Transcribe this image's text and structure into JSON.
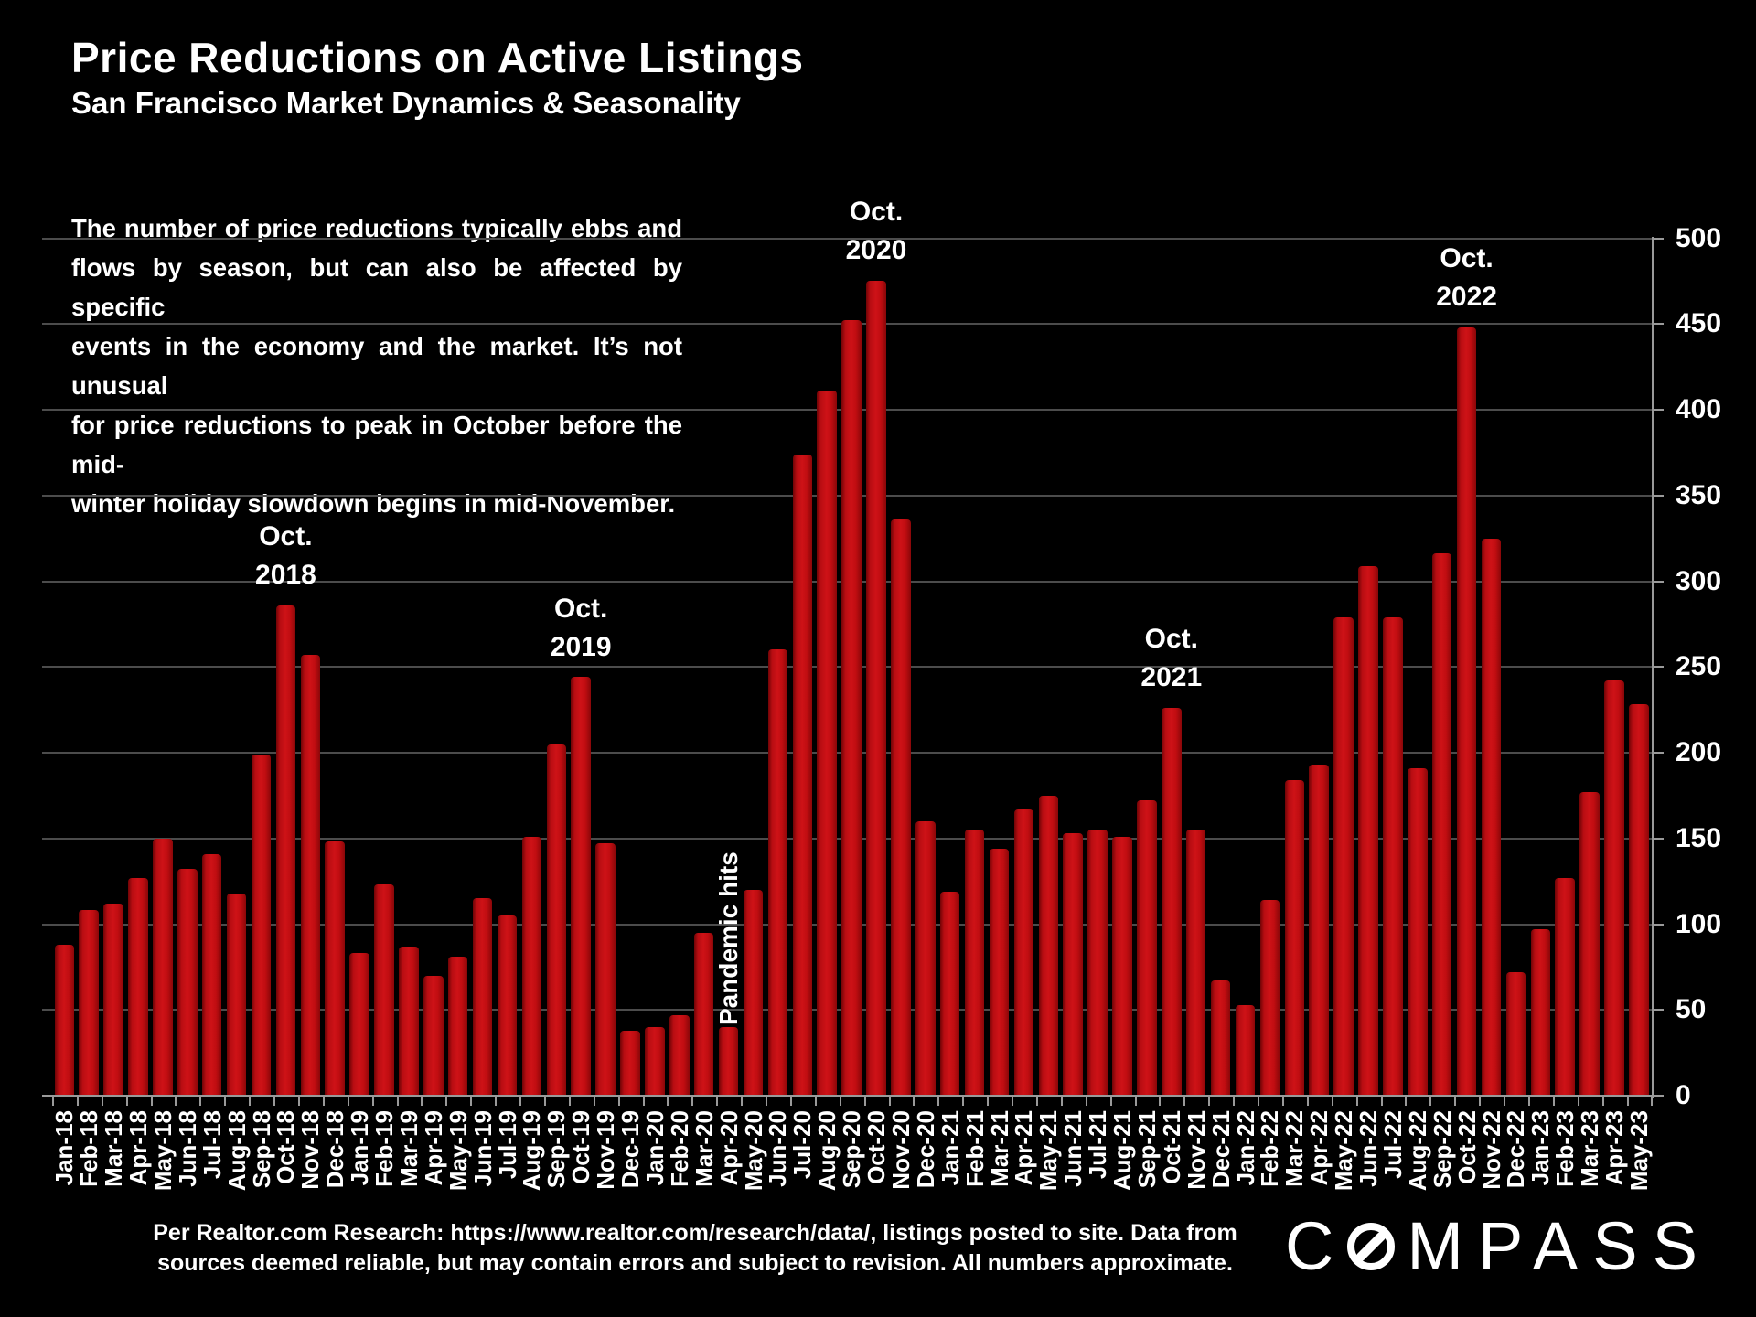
{
  "title": "Price Reductions on Active Listings",
  "subtitle": "San Francisco Market Dynamics & Seasonality",
  "paragraph_lines": [
    "The number of price reductions typically ebbs and",
    "flows by season, but can also be affected by specific",
    "events in the economy and the market. It’s not unusual",
    "for price reductions to peak in October before the mid-",
    "winter holiday slowdown begins in mid-November."
  ],
  "chart_data": {
    "type": "bar",
    "categories": [
      "Jan-18",
      "Feb-18",
      "Mar-18",
      "Apr-18",
      "May-18",
      "Jun-18",
      "Jul-18",
      "Aug-18",
      "Sep-18",
      "Oct-18",
      "Nov-18",
      "Dec-18",
      "Jan-19",
      "Feb-19",
      "Mar-19",
      "Apr-19",
      "May-19",
      "Jun-19",
      "Jul-19",
      "Aug-19",
      "Sep-19",
      "Oct-19",
      "Nov-19",
      "Dec-19",
      "Jan-20",
      "Feb-20",
      "Mar-20",
      "Apr-20",
      "May-20",
      "Jun-20",
      "Jul-20",
      "Aug-20",
      "Sep-20",
      "Oct-20",
      "Nov-20",
      "Dec-20",
      "Jan-21",
      "Feb-21",
      "Mar-21",
      "Apr-21",
      "May-21",
      "Jun-21",
      "Jul-21",
      "Aug-21",
      "Sep-21",
      "Oct-21",
      "Nov-21",
      "Dec-21",
      "Jan-22",
      "Feb-22",
      "Mar-22",
      "Apr-22",
      "May-22",
      "Jun-22",
      "Jul-22",
      "Aug-22",
      "Sep-22",
      "Oct-22",
      "Nov-22",
      "Dec-22",
      "Jan-23",
      "Feb-23",
      "Mar-23",
      "Apr-23",
      "May-23"
    ],
    "values": [
      88,
      108,
      112,
      127,
      150,
      132,
      141,
      118,
      199,
      286,
      257,
      148,
      83,
      123,
      87,
      70,
      81,
      115,
      105,
      151,
      205,
      244,
      147,
      38,
      40,
      47,
      95,
      40,
      120,
      260,
      374,
      411,
      452,
      475,
      336,
      160,
      119,
      155,
      144,
      167,
      175,
      153,
      155,
      151,
      172,
      226,
      155,
      67,
      53,
      114,
      184,
      193,
      279,
      309,
      279,
      191,
      316,
      448,
      325,
      72,
      97,
      127,
      177,
      242,
      228
    ],
    "ylim": [
      0,
      500
    ],
    "ytick_interval": 50,
    "ytick_labels": [
      "0",
      "50",
      "100",
      "150",
      "200",
      "250",
      "300",
      "350",
      "400",
      "450",
      "500"
    ],
    "y_axis_side": "right",
    "grid": "horizontal",
    "bar_color": "#C00D11",
    "gridline_color": "#4c4c4c",
    "axis_color": "#9a9a9a",
    "annotations": [
      {
        "lines": [
          "Oct.",
          "2018"
        ],
        "category": "Oct-18",
        "rotated": false
      },
      {
        "lines": [
          "Oct.",
          "2019"
        ],
        "category": "Oct-19",
        "rotated": false
      },
      {
        "lines": [
          "Oct.",
          "2020"
        ],
        "category": "Oct-20",
        "rotated": false
      },
      {
        "lines": [
          "Oct.",
          "2021"
        ],
        "category": "Oct-21",
        "rotated": false
      },
      {
        "lines": [
          "Oct.",
          "2022"
        ],
        "category": "Oct-22",
        "rotated": false
      },
      {
        "lines": [
          "Pandemic hits"
        ],
        "category": "Apr-20",
        "rotated": true
      }
    ]
  },
  "footer": {
    "line1": "Per Realtor.com Research:  https://www.realtor.com/research/data/, listings posted to site. Data from",
    "line2": "sources deemed reliable, but may contain errors and subject to revision. All numbers approximate."
  },
  "logo": {
    "left_letters": "C",
    "right_letters": "MPASS"
  }
}
